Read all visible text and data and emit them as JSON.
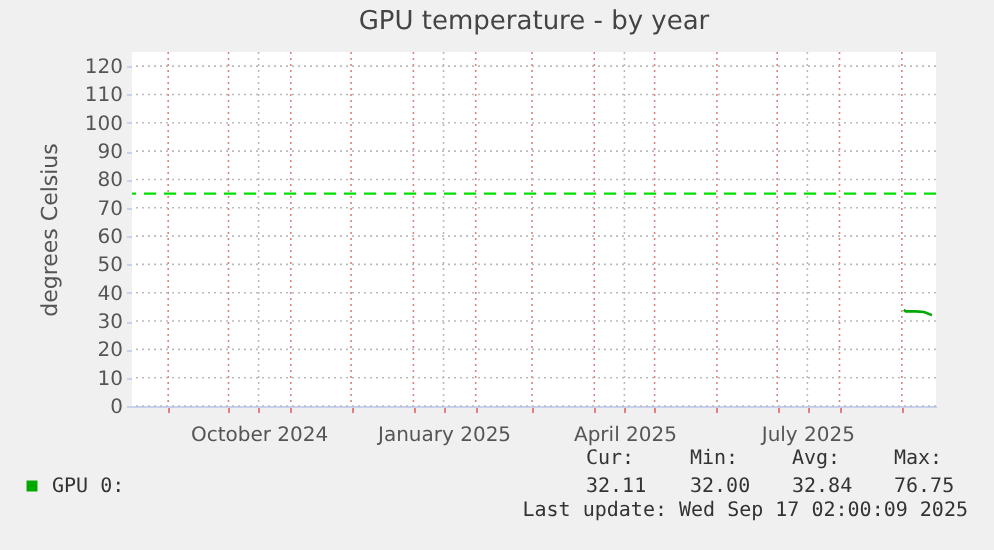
{
  "chart_data": {
    "type": "line",
    "title": "GPU temperature - by year",
    "ylabel": "degrees Celsius",
    "x": [
      "2025-09-02",
      "2025-09-03",
      "2025-09-08",
      "2025-09-12",
      "2025-09-16"
    ],
    "series": [
      {
        "name": "GPU 0:",
        "color": "#00a800",
        "values": [
          34,
          33.4,
          33.4,
          33.2,
          32.1
        ]
      }
    ],
    "ref_lines": [
      {
        "axis": "y",
        "value": 75,
        "color": "#00e000",
        "line_style": "dashed"
      }
    ],
    "xlim": [
      "2024-08-14",
      "2025-09-18"
    ],
    "xticks": [
      {
        "value": "2024-09-01",
        "label": null
      },
      {
        "value": "2024-10-01",
        "label": null
      },
      {
        "value": "2024-10-16",
        "label": "October 2024"
      },
      {
        "value": "2024-11-01",
        "label": null
      },
      {
        "value": "2024-12-01",
        "label": null
      },
      {
        "value": "2025-01-01",
        "label": null
      },
      {
        "value": "2025-01-16",
        "label": "January 2025"
      },
      {
        "value": "2025-02-01",
        "label": null
      },
      {
        "value": "2025-03-01",
        "label": null
      },
      {
        "value": "2025-04-01",
        "label": null
      },
      {
        "value": "2025-04-16",
        "label": "April 2025"
      },
      {
        "value": "2025-05-01",
        "label": null
      },
      {
        "value": "2025-06-01",
        "label": null
      },
      {
        "value": "2025-07-01",
        "label": null
      },
      {
        "value": "2025-07-16",
        "label": "July 2025"
      },
      {
        "value": "2025-08-01",
        "label": null
      },
      {
        "value": "2025-09-01",
        "label": null
      }
    ],
    "ylim": [
      0,
      125
    ],
    "yticks": [
      0,
      10,
      20,
      30,
      40,
      50,
      60,
      70,
      80,
      90,
      100,
      110,
      120
    ],
    "grid": true,
    "legend": "bottom",
    "marker": "none",
    "line_style": "solid",
    "annotations": [
      "Cur:",
      "Min:",
      "Avg:",
      "Max:",
      "32.11",
      "32.00",
      "32.84",
      "76.75",
      "Last update: Wed Sep 17 02:00:09 2025"
    ]
  }
}
